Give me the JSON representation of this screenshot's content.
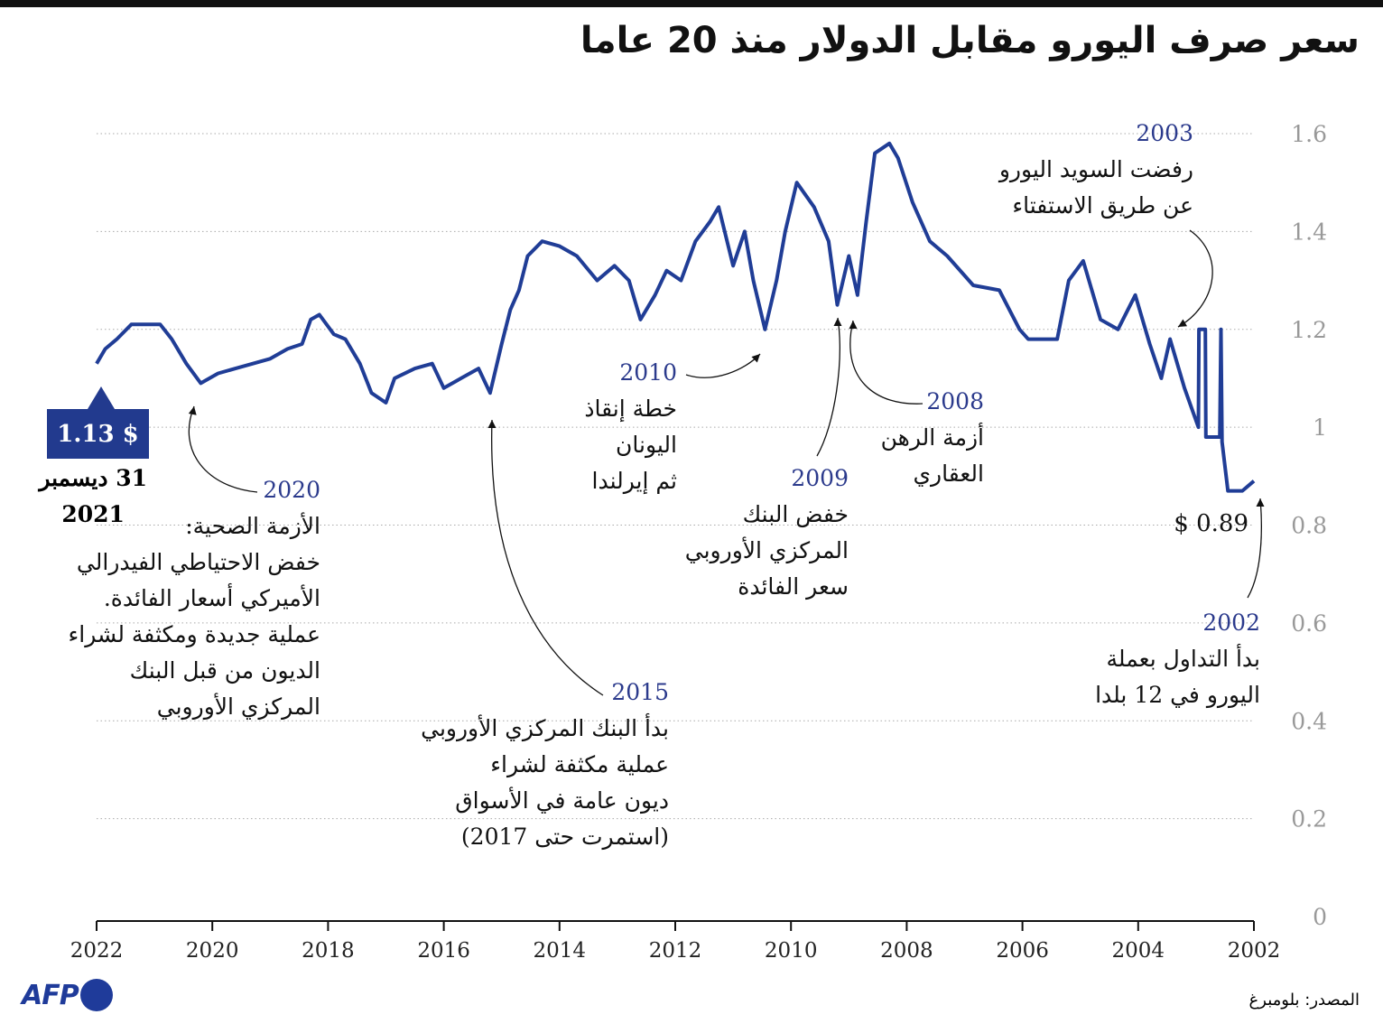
{
  "title": "سعر صرف اليورو مقابل الدولار منذ 20 عاما",
  "source": "المصدر: بلومبرغ",
  "logo": "AFP",
  "colors": {
    "line": "#203d96",
    "annotation_year": "#2b3a8c",
    "grid": "#aaaaaa",
    "tick": "#999999"
  },
  "latest": {
    "value_label": "1.13 $",
    "date_lines": [
      "31 ديسمبر",
      "2021"
    ]
  },
  "first_value_label": "0.89 $",
  "annotations": [
    {
      "year": "2003",
      "lines": [
        "رفضت السويد اليورو",
        "عن طريق الاستفتاء"
      ]
    },
    {
      "year": "2010",
      "lines": [
        "خطة إنقاذ",
        "اليونان",
        "ثم إيرلندا"
      ]
    },
    {
      "year": "2008",
      "lines": [
        "أزمة الرهن",
        "العقاري"
      ]
    },
    {
      "year": "2009",
      "lines": [
        "خفض البنك",
        "المركزي الأوروبي",
        "سعر الفائدة"
      ]
    },
    {
      "year": "2020",
      "lines": [
        "الأزمة الصحية:",
        "خفض الاحتياطي الفيدرالي",
        "الأميركي أسعار الفائدة.",
        "عملية جديدة ومكثفة لشراء",
        "الديون من قبل البنك",
        "المركزي الأوروبي"
      ]
    },
    {
      "year": "2015",
      "lines": [
        "بدأ البنك المركزي الأوروبي",
        "عملية مكثفة لشراء",
        "ديون عامة في الأسواق",
        "(استمرت حتى 2017)"
      ]
    },
    {
      "year": "2002",
      "lines": [
        "بدأ التداول بعملة",
        "اليورو في 12 بلدا"
      ]
    }
  ],
  "chart_data": {
    "type": "line",
    "title": "سعر صرف اليورو مقابل الدولار منذ 20 عاما",
    "xlim": [
      2022,
      2002
    ],
    "ylim": [
      0,
      1.6
    ],
    "x_reversed": true,
    "y_axis_side": "right",
    "grid": "horizontal dotted",
    "x_ticks": [
      "2022",
      "2020",
      "2018",
      "2016",
      "2014",
      "2012",
      "2010",
      "2008",
      "2006",
      "2004",
      "2002"
    ],
    "y_ticks": [
      "0",
      "0.2",
      "0.4",
      "0.6",
      "0.8",
      "1",
      "1.2",
      "1.4",
      "1.6"
    ],
    "series": [
      {
        "points": [
          [
            2002.0,
            0.89
          ],
          [
            2002.2,
            0.87
          ],
          [
            2002.45,
            0.87
          ],
          [
            2002.55,
            0.97
          ],
          [
            2002.57,
            1.2
          ],
          [
            2002.59,
            0.98
          ],
          [
            2002.7,
            0.98
          ],
          [
            2002.83,
            0.98
          ],
          [
            2002.84,
            1.2
          ],
          [
            2002.95,
            1.2
          ],
          [
            2002.96,
            1.0
          ],
          [
            2003.2,
            1.08
          ],
          [
            2003.45,
            1.18
          ],
          [
            2003.6,
            1.1
          ],
          [
            2003.8,
            1.17
          ],
          [
            2004.05,
            1.27
          ],
          [
            2004.35,
            1.2
          ],
          [
            2004.65,
            1.22
          ],
          [
            2004.95,
            1.34
          ],
          [
            2005.2,
            1.3
          ],
          [
            2005.4,
            1.18
          ],
          [
            2005.9,
            1.18
          ],
          [
            2006.05,
            1.2
          ],
          [
            2006.4,
            1.28
          ],
          [
            2006.85,
            1.29
          ],
          [
            2007.3,
            1.35
          ],
          [
            2007.6,
            1.38
          ],
          [
            2007.9,
            1.46
          ],
          [
            2008.15,
            1.55
          ],
          [
            2008.3,
            1.58
          ],
          [
            2008.55,
            1.56
          ],
          [
            2008.7,
            1.42
          ],
          [
            2008.85,
            1.27
          ],
          [
            2009.0,
            1.35
          ],
          [
            2009.1,
            1.3
          ],
          [
            2009.2,
            1.25
          ],
          [
            2009.35,
            1.38
          ],
          [
            2009.6,
            1.45
          ],
          [
            2009.9,
            1.5
          ],
          [
            2010.1,
            1.4
          ],
          [
            2010.25,
            1.3
          ],
          [
            2010.45,
            1.2
          ],
          [
            2010.65,
            1.3
          ],
          [
            2010.8,
            1.4
          ],
          [
            2011.0,
            1.33
          ],
          [
            2011.25,
            1.45
          ],
          [
            2011.4,
            1.42
          ],
          [
            2011.65,
            1.38
          ],
          [
            2011.9,
            1.3
          ],
          [
            2012.15,
            1.32
          ],
          [
            2012.35,
            1.27
          ],
          [
            2012.6,
            1.22
          ],
          [
            2012.8,
            1.3
          ],
          [
            2013.05,
            1.33
          ],
          [
            2013.35,
            1.3
          ],
          [
            2013.7,
            1.35
          ],
          [
            2014.0,
            1.37
          ],
          [
            2014.3,
            1.38
          ],
          [
            2014.55,
            1.35
          ],
          [
            2014.7,
            1.28
          ],
          [
            2014.85,
            1.24
          ],
          [
            2015.0,
            1.17
          ],
          [
            2015.2,
            1.07
          ],
          [
            2015.4,
            1.12
          ],
          [
            2015.7,
            1.1
          ],
          [
            2016.0,
            1.08
          ],
          [
            2016.2,
            1.13
          ],
          [
            2016.5,
            1.12
          ],
          [
            2016.85,
            1.1
          ],
          [
            2017.0,
            1.05
          ],
          [
            2017.25,
            1.07
          ],
          [
            2017.45,
            1.13
          ],
          [
            2017.7,
            1.18
          ],
          [
            2017.9,
            1.19
          ],
          [
            2018.15,
            1.23
          ],
          [
            2018.3,
            1.22
          ],
          [
            2018.45,
            1.17
          ],
          [
            2018.7,
            1.16
          ],
          [
            2019.0,
            1.14
          ],
          [
            2019.3,
            1.13
          ],
          [
            2019.6,
            1.12
          ],
          [
            2019.9,
            1.11
          ],
          [
            2020.2,
            1.09
          ],
          [
            2020.45,
            1.13
          ],
          [
            2020.7,
            1.18
          ],
          [
            2020.9,
            1.21
          ],
          [
            2021.15,
            1.21
          ],
          [
            2021.4,
            1.21
          ],
          [
            2021.65,
            1.18
          ],
          [
            2021.85,
            1.16
          ],
          [
            2022.0,
            1.13
          ]
        ]
      }
    ]
  }
}
